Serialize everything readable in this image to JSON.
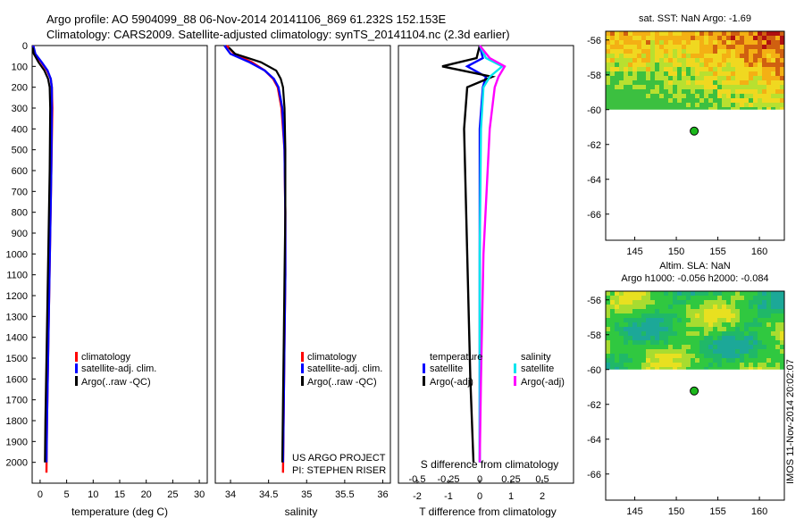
{
  "header": {
    "title_line1": "Argo profile: AO 5904099_88 06-Nov-2014 20141106_869 61.232S 152.153E",
    "title_line2": "Climatology: CARS2009. Satellite-adjusted climatology: synTS_20141104.nc (2.3d earlier)"
  },
  "colors": {
    "climatology": "#ff0000",
    "satellite": "#0000ff",
    "argo": "#000000",
    "s_satellite": "#00e5ee",
    "s_argo": "#ff00ff"
  },
  "chart_data": [
    {
      "type": "line",
      "id": "temperature",
      "xlabel": "temperature (deg C)",
      "ylabel": "",
      "xlim": [
        -1.5,
        31.5
      ],
      "ylim": [
        2100,
        0
      ],
      "x_ticks": [
        0,
        5,
        10,
        15,
        20,
        25,
        30
      ],
      "y_ticks": [
        0,
        100,
        200,
        300,
        400,
        500,
        600,
        700,
        800,
        900,
        1000,
        1100,
        1200,
        1300,
        1400,
        1500,
        1600,
        1700,
        1800,
        1900,
        2000
      ],
      "legend": [
        "climatology",
        "satellite-adj. clim.",
        "Argo(..raw -QC)"
      ],
      "series": [
        {
          "name": "climatology",
          "x": [
            -1.3,
            -1.0,
            0.2,
            1.3,
            2.0,
            2.2,
            2.3,
            2.1,
            1.9,
            1.7,
            1.5,
            1.3,
            1.2
          ],
          "depth": [
            0,
            40,
            80,
            120,
            160,
            200,
            300,
            600,
            900,
            1200,
            1500,
            1800,
            2050
          ]
        },
        {
          "name": "satellite-adj. clim.",
          "x": [
            -1.3,
            -0.9,
            0.3,
            1.4,
            2.0,
            2.2,
            2.2,
            2.1,
            1.9,
            1.7,
            1.5,
            1.3,
            1.2
          ],
          "depth": [
            0,
            40,
            80,
            120,
            160,
            200,
            300,
            600,
            900,
            1200,
            1500,
            1800,
            2000
          ]
        },
        {
          "name": "Argo(..raw -QC)",
          "x": [
            -1.4,
            -1.2,
            -0.3,
            0.8,
            1.5,
            1.8,
            1.9,
            1.8,
            1.6,
            1.4,
            1.2,
            1.0,
            0.9
          ],
          "depth": [
            10,
            40,
            80,
            120,
            160,
            200,
            300,
            600,
            900,
            1200,
            1500,
            1800,
            2000
          ]
        }
      ]
    },
    {
      "type": "line",
      "id": "salinity",
      "xlabel": "salinity",
      "ylabel": "",
      "xlim": [
        33.8,
        36.1
      ],
      "ylim": [
        2100,
        0
      ],
      "x_ticks": [
        34,
        34.5,
        35,
        35.5,
        36
      ],
      "x_tick_labels": [
        "34",
        "34.5",
        "35",
        "35.5",
        "36"
      ],
      "legend": [
        "climatology",
        "satellite-adj. clim.",
        "Argo(..raw -QC)"
      ],
      "annotation": [
        "US ARGO PROJECT",
        "PI: STEPHEN RISER"
      ],
      "series": [
        {
          "name": "climatology",
          "x": [
            33.95,
            34.05,
            34.28,
            34.45,
            34.56,
            34.62,
            34.67,
            34.71,
            34.72,
            34.72,
            34.71,
            34.7,
            34.69
          ],
          "depth": [
            0,
            40,
            80,
            120,
            160,
            200,
            300,
            500,
            800,
            1100,
            1400,
            1700,
            2050
          ]
        },
        {
          "name": "satellite-adj. clim.",
          "x": [
            33.92,
            34.0,
            34.25,
            34.45,
            34.57,
            34.63,
            34.68,
            34.71,
            34.72,
            34.72,
            34.71,
            34.7,
            34.69
          ],
          "depth": [
            0,
            40,
            80,
            120,
            160,
            200,
            300,
            500,
            800,
            1100,
            1400,
            1700,
            2000
          ]
        },
        {
          "name": "Argo(..raw -QC)",
          "x": [
            33.98,
            34.06,
            34.4,
            34.6,
            34.66,
            34.69,
            34.71,
            34.72,
            34.72,
            34.71,
            34.7,
            34.69,
            34.68
          ],
          "depth": [
            10,
            40,
            80,
            120,
            160,
            200,
            300,
            500,
            800,
            1100,
            1400,
            1700,
            2000
          ]
        }
      ]
    },
    {
      "type": "line",
      "id": "difference",
      "xlabel": "T difference from climatology",
      "top_label": "S difference from climatology",
      "xlim": [
        -2.6,
        3.0
      ],
      "s_xlim": [
        -0.65,
        0.75
      ],
      "ylim": [
        2100,
        0
      ],
      "x_ticks": [
        -2,
        -1,
        0,
        1,
        2
      ],
      "s_ticks": [
        -0.5,
        -0.25,
        0,
        0.25,
        0.5
      ],
      "s_tick_labels": [
        "-0.5",
        "-0.25",
        "0",
        "0.25",
        "0.5"
      ],
      "legend_titles": [
        "temperature",
        "salinity"
      ],
      "legend": [
        "satellite",
        "Argo(-adj)",
        "satellite",
        "Argo(-adj)"
      ],
      "series": [
        {
          "name": "T satellite",
          "x": [
            0,
            0.1,
            -0.4,
            0.2,
            0.1,
            0.0,
            0.0,
            0.0,
            0.0
          ],
          "depth": [
            0,
            60,
            100,
            150,
            200,
            400,
            1000,
            1600,
            2000
          ]
        },
        {
          "name": "T Argo(-adj)",
          "x": [
            0,
            -0.1,
            -1.2,
            0.4,
            -0.4,
            -0.5,
            -0.4,
            -0.3,
            -0.2
          ],
          "depth": [
            0,
            60,
            100,
            150,
            200,
            400,
            1000,
            1600,
            2000
          ]
        },
        {
          "name": "S satellite",
          "s": [
            0.0,
            0.05,
            0.18,
            0.08,
            0.03,
            0.01,
            0.0,
            0.0,
            0.0
          ],
          "depth": [
            0,
            60,
            100,
            150,
            200,
            400,
            1000,
            1600,
            2000
          ]
        },
        {
          "name": "S Argo(-adj)",
          "s": [
            0.0,
            0.08,
            0.2,
            0.15,
            0.12,
            0.08,
            0.03,
            0.01,
            0.0
          ],
          "depth": [
            0,
            60,
            100,
            150,
            200,
            400,
            1000,
            1600,
            2000
          ]
        }
      ]
    },
    {
      "type": "heatmap",
      "id": "sst-map",
      "title": "sat. SST: NaN Argo: -1.69",
      "xlim": [
        141.5,
        163
      ],
      "ylim": [
        -67.5,
        -55.5
      ],
      "x_ticks": [
        145,
        150,
        155,
        160
      ],
      "y_ticks": [
        -56,
        -58,
        -60,
        -62,
        -64,
        -66
      ],
      "data_lat_range": [
        -60,
        -55.5
      ],
      "float_position": {
        "lon": 152.153,
        "lat": -61.232
      }
    },
    {
      "type": "heatmap",
      "id": "sla-map",
      "title_line1": "Altim. SLA: NaN",
      "title_line2": "Argo h1000: -0.056 h2000: -0.084",
      "xlim": [
        141.5,
        163
      ],
      "ylim": [
        -67.5,
        -55.5
      ],
      "x_ticks": [
        145,
        150,
        155,
        160
      ],
      "y_ticks": [
        -56,
        -58,
        -60,
        -62,
        -64,
        -66
      ],
      "data_lat_range": [
        -60,
        -55.5
      ],
      "float_position": {
        "lon": 152.153,
        "lat": -61.232
      }
    }
  ],
  "footer": {
    "imos_stamp": "IMOS 11-Nov-2014 20:02:07"
  }
}
